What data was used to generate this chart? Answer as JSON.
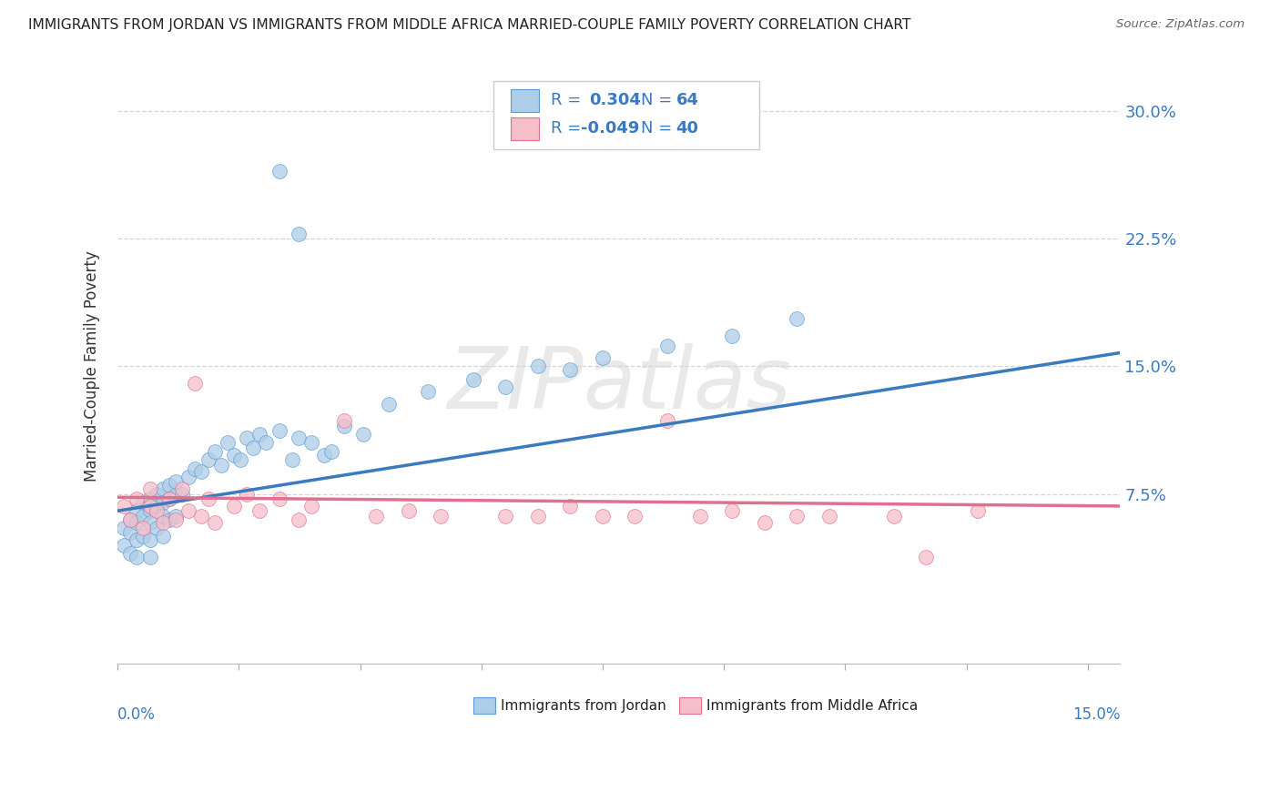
{
  "title": "IMMIGRANTS FROM JORDAN VS IMMIGRANTS FROM MIDDLE AFRICA MARRIED-COUPLE FAMILY POVERTY CORRELATION CHART",
  "source": "Source: ZipAtlas.com",
  "ylabel": "Married-Couple Family Poverty",
  "xlim": [
    0.0,
    0.155
  ],
  "ylim": [
    -0.025,
    0.325
  ],
  "jordan_color": "#aecde8",
  "jordan_edge_color": "#5b9bd5",
  "middle_africa_color": "#f5bec8",
  "middle_africa_edge_color": "#e07090",
  "jordan_R": 0.304,
  "jordan_N": 64,
  "middle_africa_R": -0.049,
  "middle_africa_N": 40,
  "jordan_line_color": "#3a7abf",
  "middle_africa_line_color": "#e07090",
  "watermark": "ZIPatlas",
  "watermark_color": "#d5d5d5",
  "legend_label_jordan": "Immigrants from Jordan",
  "legend_label_middle_africa": "Immigrants from Middle Africa",
  "background_color": "#ffffff",
  "grid_color": "#d5d5d5",
  "legend_text_color": "#3a7abf",
  "title_color": "#222222",
  "source_color": "#666666",
  "ylabel_color": "#333333",
  "ytick_color": "#3a7abf",
  "xtick_label_color": "#3a7abf"
}
